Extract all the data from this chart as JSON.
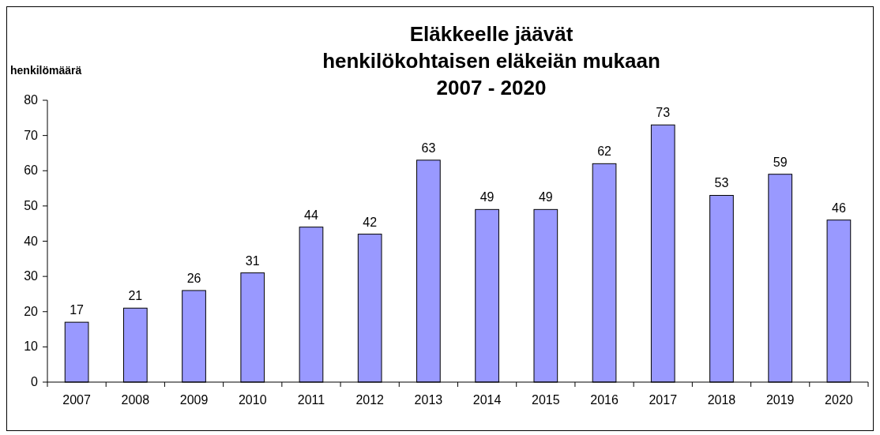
{
  "chart_data": {
    "type": "bar",
    "title": "Eläkkeelle jäävät\nhenkilökohtaisen eläkeiän mukaan\n2007 - 2020",
    "ylabel": "henkilömäärä",
    "categories": [
      "2007",
      "2008",
      "2009",
      "2010",
      "2011",
      "2012",
      "2013",
      "2014",
      "2015",
      "2016",
      "2017",
      "2018",
      "2019",
      "2020"
    ],
    "values": [
      17,
      21,
      26,
      31,
      44,
      42,
      63,
      49,
      49,
      62,
      73,
      53,
      59,
      46
    ],
    "color": "#9999ff",
    "ylim": [
      0,
      80
    ],
    "yticks": [
      0,
      10,
      20,
      30,
      40,
      50,
      60,
      70,
      80
    ],
    "grid": false,
    "data_labels": true
  }
}
